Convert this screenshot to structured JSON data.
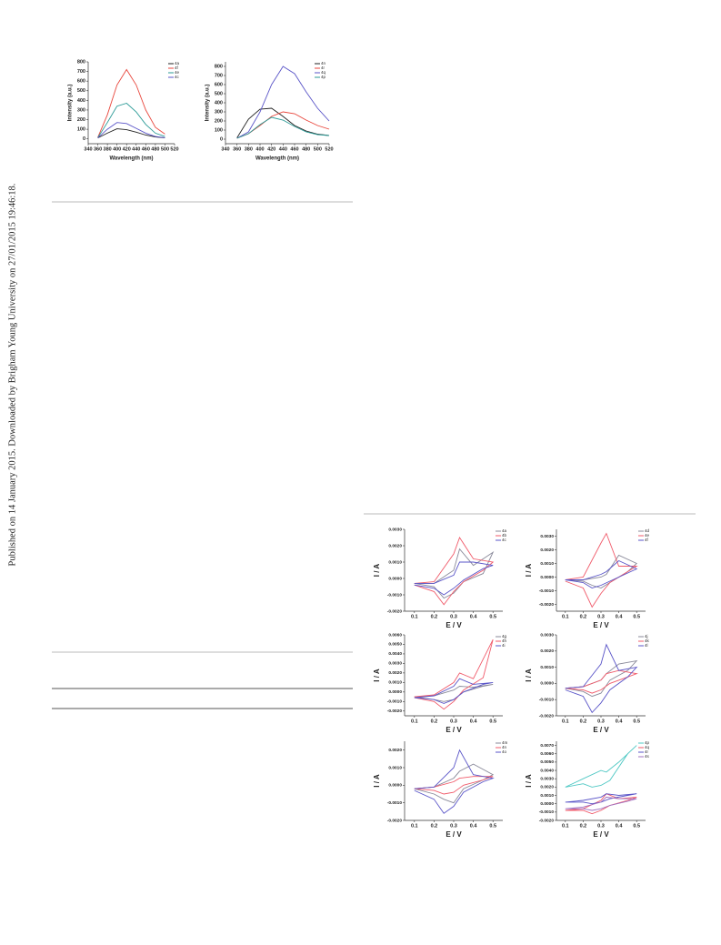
{
  "side_text": "Published on 14 January 2015. Downloaded by Brigham Young University on 27/01/2015 19:46:18.",
  "chart_data": [
    {
      "type": "line",
      "xlabel": "Wavelength (nm)",
      "ylabel": "Intensity (a.u.)",
      "x": [
        360,
        380,
        400,
        420,
        440,
        460,
        480,
        500
      ],
      "xlim": [
        340,
        520
      ],
      "xticks": [
        340,
        360,
        380,
        400,
        420,
        440,
        460,
        480,
        500,
        520
      ],
      "ylim": [
        -50,
        800
      ],
      "yticks": [
        0,
        100,
        200,
        300,
        400,
        500,
        600,
        700,
        800
      ],
      "series": [
        {
          "name": "4a",
          "color": "#222222",
          "values": [
            10,
            60,
            105,
            95,
            70,
            40,
            20,
            10
          ]
        },
        {
          "name": "4f",
          "color": "#e8463c",
          "values": [
            15,
            250,
            560,
            720,
            560,
            300,
            120,
            50
          ]
        },
        {
          "name": "4e",
          "color": "#2a9a96",
          "values": [
            12,
            170,
            340,
            370,
            280,
            150,
            60,
            25
          ]
        },
        {
          "name": "4c",
          "color": "#5a55c8",
          "values": [
            10,
            100,
            170,
            160,
            110,
            60,
            25,
            12
          ]
        }
      ]
    },
    {
      "type": "line",
      "xlabel": "Wavelength (nm)",
      "ylabel": "Intensity (a.u.)",
      "x": [
        360,
        380,
        400,
        420,
        440,
        460,
        480,
        500,
        520
      ],
      "xlim": [
        340,
        520
      ],
      "xticks": [
        340,
        360,
        380,
        400,
        420,
        440,
        460,
        480,
        500,
        520
      ],
      "ylim": [
        -50,
        850
      ],
      "yticks": [
        0,
        100,
        200,
        300,
        400,
        500,
        600,
        700,
        800
      ],
      "series": [
        {
          "name": "4n",
          "color": "#222222",
          "values": [
            15,
            220,
            330,
            340,
            250,
            150,
            90,
            55,
            40
          ]
        },
        {
          "name": "4r",
          "color": "#e8463c",
          "values": [
            10,
            60,
            150,
            250,
            300,
            280,
            210,
            150,
            110
          ]
        },
        {
          "name": "4q",
          "color": "#5a55c8",
          "values": [
            10,
            80,
            300,
            600,
            800,
            720,
            520,
            340,
            200
          ]
        },
        {
          "name": "4p",
          "color": "#2a9a96",
          "values": [
            10,
            60,
            160,
            240,
            210,
            140,
            80,
            50,
            40
          ]
        }
      ]
    },
    {
      "type": "line",
      "xlabel": "E / V",
      "ylabel": "I / A",
      "x": [
        0.1,
        0.2,
        0.3,
        0.33,
        0.4,
        0.5,
        0.45,
        0.35,
        0.3,
        0.25,
        0.2,
        0.1
      ],
      "xlim": [
        0.05,
        0.55
      ],
      "xticks": [
        0.1,
        0.2,
        0.3,
        0.4,
        0.5
      ],
      "ylim": [
        -0.002,
        0.003
      ],
      "yticks": [
        {
          "value": -0.002,
          "label": "-0.0020"
        },
        {
          "value": -0.001,
          "label": "-0.0010"
        },
        {
          "value": 0,
          "label": "0.0000"
        },
        {
          "value": 0.001,
          "label": "0.0010"
        },
        {
          "value": 0.002,
          "label": "0.0020"
        },
        {
          "value": 0.003,
          "label": "0.0030"
        }
      ],
      "series": [
        {
          "name": "4a",
          "color": "#8a8a9a",
          "values": [
            -0.0003,
            -0.0003,
            0.0005,
            0.0018,
            0.0008,
            0.0016,
            0.0003,
            -0.0002,
            -0.0009,
            -0.0012,
            -0.0005,
            -0.0003
          ]
        },
        {
          "name": "4b",
          "color": "#f05a6a",
          "values": [
            -0.0003,
            -0.0002,
            0.0015,
            0.0025,
            0.0012,
            0.001,
            0.0005,
            -0.0002,
            -0.0008,
            -0.0016,
            -0.0008,
            -0.0004
          ]
        },
        {
          "name": "4c",
          "color": "#5a55c8",
          "values": [
            -0.0003,
            -0.0003,
            0.0002,
            0.001,
            0.001,
            0.0008,
            0.0006,
            -0.0001,
            -0.0006,
            -0.001,
            -0.0006,
            -0.0004
          ]
        }
      ]
    },
    {
      "type": "line",
      "xlabel": "E / V",
      "ylabel": "I / A",
      "x": [
        0.1,
        0.2,
        0.3,
        0.33,
        0.4,
        0.5,
        0.45,
        0.35,
        0.3,
        0.25,
        0.2,
        0.1
      ],
      "xlim": [
        0.05,
        0.55
      ],
      "xticks": [
        0.1,
        0.2,
        0.3,
        0.4,
        0.5
      ],
      "ylim": [
        -0.0025,
        0.0035
      ],
      "yticks": [
        {
          "value": -0.002,
          "label": "-0.0020"
        },
        {
          "value": -0.001,
          "label": "-0.0010"
        },
        {
          "value": 0,
          "label": "0.0000"
        },
        {
          "value": 0.001,
          "label": "0.0010"
        },
        {
          "value": 0.002,
          "label": "0.0020"
        },
        {
          "value": 0.003,
          "label": "0.0030"
        }
      ],
      "series": [
        {
          "name": "4d",
          "color": "#8a8a9a",
          "values": [
            -0.0002,
            -0.0002,
            0,
            0.0002,
            0.0016,
            0.001,
            0.0004,
            -0.0004,
            -0.0008,
            -0.0006,
            -0.0003,
            -0.0002
          ]
        },
        {
          "name": "4e",
          "color": "#f05a6a",
          "values": [
            -0.0002,
            0,
            0.0025,
            0.0032,
            0.0008,
            0.0008,
            0.0004,
            -0.0004,
            -0.0012,
            -0.0022,
            -0.0008,
            -0.0003
          ]
        },
        {
          "name": "4f",
          "color": "#5a55c8",
          "values": [
            -0.0002,
            -0.0002,
            0.0002,
            0.0004,
            0.0012,
            0.0006,
            0.0003,
            -0.0003,
            -0.0006,
            -0.0008,
            -0.0004,
            -0.0002
          ]
        }
      ]
    },
    {
      "type": "line",
      "xlabel": "E / V",
      "ylabel": "I / A",
      "x": [
        0.1,
        0.2,
        0.3,
        0.33,
        0.4,
        0.5,
        0.45,
        0.35,
        0.3,
        0.25,
        0.2,
        0.1
      ],
      "xlim": [
        0.05,
        0.55
      ],
      "xticks": [
        0.1,
        0.2,
        0.3,
        0.4,
        0.5
      ],
      "ylim": [
        -0.0025,
        0.006
      ],
      "yticks": [
        {
          "value": -0.002,
          "label": "-0.0020"
        },
        {
          "value": -0.001,
          "label": "-0.0010"
        },
        {
          "value": 0,
          "label": "0.0000"
        },
        {
          "value": 0.001,
          "label": "0.0010"
        },
        {
          "value": 0.002,
          "label": "0.0020"
        },
        {
          "value": 0.003,
          "label": "0.0030"
        },
        {
          "value": 0.004,
          "label": "0.0040"
        },
        {
          "value": 0.005,
          "label": "0.0050"
        },
        {
          "value": 0.006,
          "label": "0.0060"
        }
      ],
      "series": [
        {
          "name": "4g",
          "color": "#8a8a9a",
          "values": [
            -0.0005,
            -0.0004,
            0.0002,
            0.0006,
            0.0005,
            0.0008,
            0.0006,
            0,
            -0.0008,
            -0.001,
            -0.0008,
            -0.0005
          ]
        },
        {
          "name": "4h",
          "color": "#f05a6a",
          "values": [
            -0.0005,
            -0.0003,
            0.001,
            0.002,
            0.0014,
            0.0055,
            0.0015,
            0.0002,
            -0.001,
            -0.0018,
            -0.001,
            -0.0006
          ]
        },
        {
          "name": "4i",
          "color": "#5a55c8",
          "values": [
            -0.0006,
            -0.0004,
            0.0006,
            0.0014,
            0.0008,
            0.001,
            0.0008,
            0,
            -0.0008,
            -0.0012,
            -0.0008,
            -0.0006
          ]
        }
      ]
    },
    {
      "type": "line",
      "xlabel": "E / V",
      "ylabel": "I / A",
      "x": [
        0.1,
        0.2,
        0.3,
        0.33,
        0.4,
        0.5,
        0.45,
        0.35,
        0.3,
        0.25,
        0.2,
        0.1
      ],
      "xlim": [
        0.05,
        0.55
      ],
      "xticks": [
        0.1,
        0.2,
        0.3,
        0.4,
        0.5
      ],
      "ylim": [
        -0.002,
        0.003
      ],
      "yticks": [
        {
          "value": -0.002,
          "label": "-0.0020"
        },
        {
          "value": -0.001,
          "label": "-0.0010"
        },
        {
          "value": 0,
          "label": "0.0000"
        },
        {
          "value": 0.001,
          "label": "0.0010"
        },
        {
          "value": 0.002,
          "label": "0.0020"
        },
        {
          "value": 0.003,
          "label": "0.0030"
        }
      ],
      "series": [
        {
          "name": "4j",
          "color": "#8a8a9a",
          "values": [
            -0.0003,
            -0.0002,
            0.0002,
            0.0006,
            0.0012,
            0.0014,
            0.0008,
            0.0002,
            -0.0006,
            -0.0008,
            -0.0005,
            -0.0003
          ]
        },
        {
          "name": "4k",
          "color": "#f05a6a",
          "values": [
            -0.0003,
            -0.0002,
            0.0002,
            0.0006,
            0.0008,
            0.0006,
            0.0004,
            0,
            -0.0004,
            -0.0006,
            -0.0004,
            -0.0003
          ]
        },
        {
          "name": "4l",
          "color": "#5a55c8",
          "values": [
            -0.0003,
            -0.0002,
            0.0012,
            0.0024,
            0.0008,
            0.001,
            0.0004,
            -0.0004,
            -0.0012,
            -0.0018,
            -0.0008,
            -0.0004
          ]
        }
      ]
    },
    {
      "type": "line",
      "xlabel": "E / V",
      "ylabel": "I / A",
      "x": [
        0.1,
        0.2,
        0.3,
        0.33,
        0.4,
        0.5,
        0.45,
        0.35,
        0.3,
        0.25,
        0.2,
        0.1
      ],
      "xlim": [
        0.05,
        0.55
      ],
      "xticks": [
        0.1,
        0.2,
        0.3,
        0.4,
        0.5
      ],
      "ylim": [
        -0.002,
        0.0025
      ],
      "yticks": [
        {
          "value": -0.002,
          "label": "-0.0020"
        },
        {
          "value": -0.001,
          "label": "-0.0010"
        },
        {
          "value": 0,
          "label": "0.0000"
        },
        {
          "value": 0.001,
          "label": "0.0010"
        },
        {
          "value": 0.002,
          "label": "0.0020"
        }
      ],
      "series": [
        {
          "name": "4m",
          "color": "#8a8a9a",
          "values": [
            -0.0002,
            -0.0001,
            0.0004,
            0.0008,
            0.0012,
            0.0006,
            0.0003,
            -0.0002,
            -0.001,
            -0.0008,
            -0.0005,
            -0.0002
          ]
        },
        {
          "name": "4n",
          "color": "#f05a6a",
          "values": [
            -0.0002,
            -0.0001,
            0.0002,
            0.0004,
            0.0005,
            0.0005,
            0.0003,
            0,
            -0.0004,
            -0.0005,
            -0.0003,
            -0.0002
          ]
        },
        {
          "name": "4o",
          "color": "#5a55c8",
          "values": [
            -0.0002,
            -0.0001,
            0.001,
            0.002,
            0.0006,
            0.0004,
            0.0002,
            -0.0004,
            -0.0012,
            -0.0016,
            -0.0008,
            -0.0003
          ]
        }
      ]
    },
    {
      "type": "line",
      "xlabel": "E / V",
      "ylabel": "I / A",
      "x": [
        0.1,
        0.2,
        0.3,
        0.33,
        0.4,
        0.5,
        0.45,
        0.35,
        0.3,
        0.25,
        0.2,
        0.1
      ],
      "xlim": [
        0.05,
        0.55
      ],
      "xticks": [
        0.1,
        0.2,
        0.3,
        0.4,
        0.5
      ],
      "ylim": [
        -0.002,
        0.0075
      ],
      "yticks": [
        {
          "value": -0.002,
          "label": "-0.0020"
        },
        {
          "value": -0.001,
          "label": "-0.0010"
        },
        {
          "value": 0,
          "label": "0.0000"
        },
        {
          "value": 0.001,
          "label": "0.0010"
        },
        {
          "value": 0.002,
          "label": "0.0020"
        },
        {
          "value": 0.003,
          "label": "0.0030"
        },
        {
          "value": 0.004,
          "label": "0.0040"
        },
        {
          "value": 0.005,
          "label": "0.0050"
        },
        {
          "value": 0.006,
          "label": "0.0060"
        },
        {
          "value": 0.007,
          "label": "0.0070"
        }
      ],
      "series": [
        {
          "name": "4p",
          "color": "#4fc8c4",
          "values": [
            0.002,
            0.003,
            0.004,
            0.0038,
            0.005,
            0.007,
            0.006,
            0.0028,
            0.0022,
            0.002,
            0.0024,
            0.002
          ]
        },
        {
          "name": "4q",
          "color": "#f05a6a",
          "values": [
            -0.0008,
            -0.0006,
            0.0004,
            0.0012,
            0.0006,
            0.0008,
            0.0004,
            -0.0002,
            -0.0008,
            -0.0012,
            -0.0008,
            -0.0008
          ]
        },
        {
          "name": "4r",
          "color": "#5a55c8",
          "values": [
            0.0002,
            0.0004,
            0.0008,
            0.0012,
            0.001,
            0.0012,
            0.001,
            0.0006,
            0.0002,
            0,
            0.0002,
            0.0002
          ]
        },
        {
          "name": "4s",
          "color": "#a070c0",
          "values": [
            -0.0006,
            -0.0004,
            0.0002,
            0.0008,
            0.0006,
            0.0006,
            0.0003,
            -0.0002,
            -0.0006,
            -0.0008,
            -0.0006,
            -0.0006
          ]
        }
      ]
    }
  ]
}
